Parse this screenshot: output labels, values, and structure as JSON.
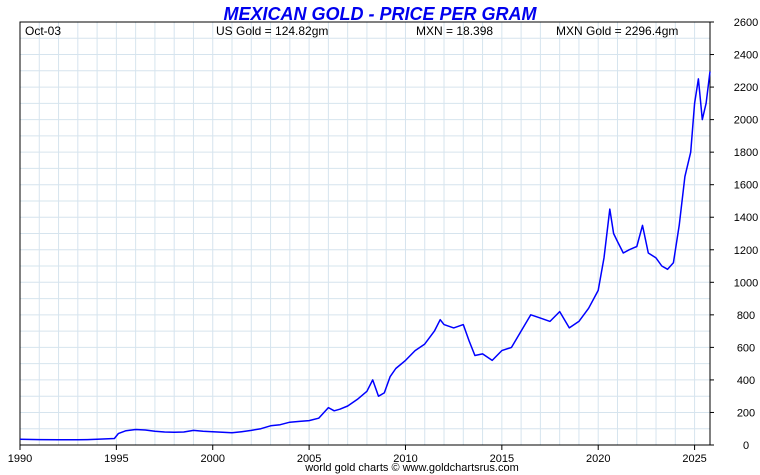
{
  "chart_data": {
    "type": "line",
    "title": "MEXICAN GOLD - PRICE PER GRAM",
    "info": {
      "date": "Oct-03",
      "us_gold": "US Gold = 124.82gm",
      "mxn_rate": "MXN = 18.398",
      "mxn_gold": "MXN Gold = 2296.4gm"
    },
    "footer": "world gold charts © www.goldchartsrus.com",
    "xlabel": "",
    "ylabel": "",
    "xlim": [
      1990,
      2025.8
    ],
    "ylim": [
      0,
      2600
    ],
    "x_ticks": [
      1990,
      1995,
      2000,
      2005,
      2010,
      2015,
      2020,
      2025
    ],
    "y_ticks": [
      0,
      200,
      400,
      600,
      800,
      1000,
      1200,
      1400,
      1600,
      1800,
      2000,
      2200,
      2400,
      2600
    ],
    "grid": true,
    "y_axis_side": "right",
    "colors": {
      "line": "#0000ff",
      "title": "#0000ee",
      "grid": "#d6e4ee",
      "axis": "#000000"
    },
    "series": [
      {
        "x": [
          1990.0,
          1991.0,
          1992.0,
          1993.0,
          1993.5,
          1994.0,
          1994.6,
          1994.9,
          1995.1,
          1995.5,
          1996.0,
          1996.5,
          1997.0,
          1997.5,
          1998.0,
          1998.5,
          1999.0,
          1999.5,
          2000.0,
          2000.5,
          2001.0,
          2001.5,
          2002.0,
          2002.5,
          2003.0,
          2003.5,
          2004.0,
          2004.5,
          2005.0,
          2005.5,
          2006.0,
          2006.3,
          2006.6,
          2007.0,
          2007.5,
          2008.0,
          2008.3,
          2008.6,
          2008.9,
          2009.2,
          2009.5,
          2010.0,
          2010.5,
          2011.0,
          2011.5,
          2011.8,
          2012.0,
          2012.5,
          2013.0,
          2013.3,
          2013.6,
          2014.0,
          2014.5,
          2015.0,
          2015.5,
          2016.0,
          2016.5,
          2017.0,
          2017.5,
          2018.0,
          2018.5,
          2019.0,
          2019.5,
          2020.0,
          2020.3,
          2020.6,
          2020.8,
          2021.0,
          2021.3,
          2021.6,
          2022.0,
          2022.3,
          2022.6,
          2023.0,
          2023.3,
          2023.6,
          2023.9,
          2024.2,
          2024.5,
          2024.8,
          2025.0,
          2025.2,
          2025.4,
          2025.6,
          2025.8
        ],
        "y": [
          35,
          33,
          32,
          32,
          33,
          35,
          38,
          40,
          70,
          88,
          95,
          92,
          85,
          80,
          78,
          80,
          90,
          85,
          82,
          78,
          75,
          82,
          90,
          100,
          118,
          125,
          140,
          145,
          150,
          165,
          230,
          210,
          220,
          240,
          280,
          330,
          400,
          300,
          320,
          420,
          470,
          520,
          580,
          620,
          700,
          770,
          740,
          720,
          740,
          640,
          550,
          560,
          520,
          580,
          600,
          700,
          800,
          780,
          760,
          820,
          720,
          760,
          840,
          950,
          1150,
          1450,
          1300,
          1250,
          1180,
          1200,
          1220,
          1350,
          1180,
          1150,
          1100,
          1080,
          1120,
          1350,
          1650,
          1800,
          2100,
          2250,
          2000,
          2100,
          2296
        ]
      }
    ]
  }
}
